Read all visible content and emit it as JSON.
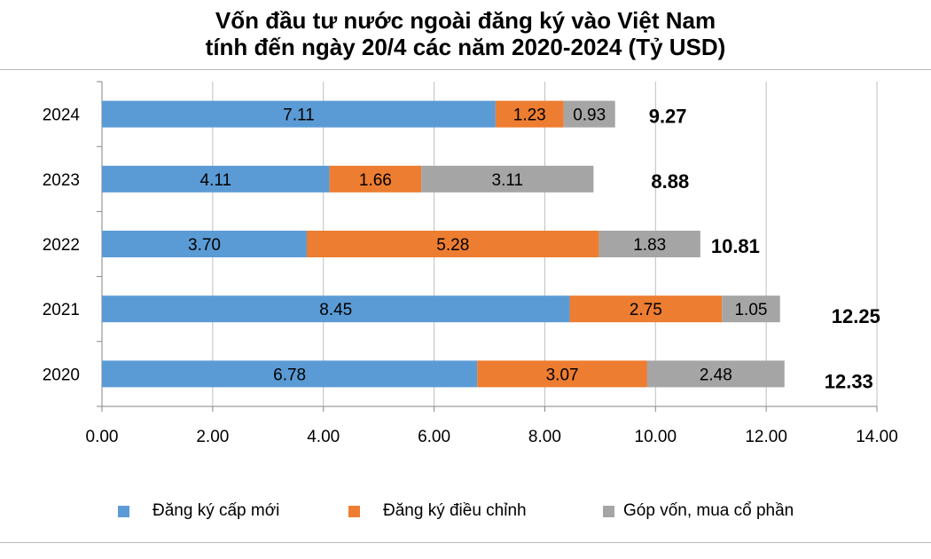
{
  "chart_data": {
    "type": "bar",
    "orientation": "horizontal",
    "stacked": true,
    "title_line1": "Vốn đầu tư nước ngoài đăng ký vào Việt Nam",
    "title_line2": "tính đến ngày 20/4 các năm 2020-2024 (Tỷ USD)",
    "categories": [
      "2024",
      "2023",
      "2022",
      "2021",
      "2020"
    ],
    "series": [
      {
        "name": "Đăng ký cấp mới",
        "color": "#5b9bd5",
        "values": [
          7.11,
          4.11,
          3.7,
          8.45,
          6.78
        ],
        "labels": [
          "7.11",
          "4.11",
          "3.70",
          "8.45",
          "6.78"
        ]
      },
      {
        "name": "Đăng ký điều chỉnh",
        "color": "#ed7d31",
        "values": [
          1.23,
          1.66,
          5.28,
          2.75,
          3.07
        ],
        "labels": [
          "1.23",
          "1.66",
          "5.28",
          "2.75",
          "3.07"
        ]
      },
      {
        "name": "Góp vốn, mua cổ phần",
        "color": "#a5a5a5",
        "values": [
          0.93,
          3.11,
          1.83,
          1.05,
          2.48
        ],
        "labels": [
          "0.93",
          "3.11",
          "1.83",
          "1.05",
          "2.48"
        ]
      }
    ],
    "totals": [
      "9.27",
      "8.88",
      "10.81",
      "12.25",
      "12.33"
    ],
    "xlim": [
      0,
      14
    ],
    "xticks": [
      "0.00",
      "2.00",
      "4.00",
      "6.00",
      "8.00",
      "10.00",
      "12.00",
      "14.00"
    ],
    "grid": "vertical",
    "legend_position": "bottom"
  }
}
